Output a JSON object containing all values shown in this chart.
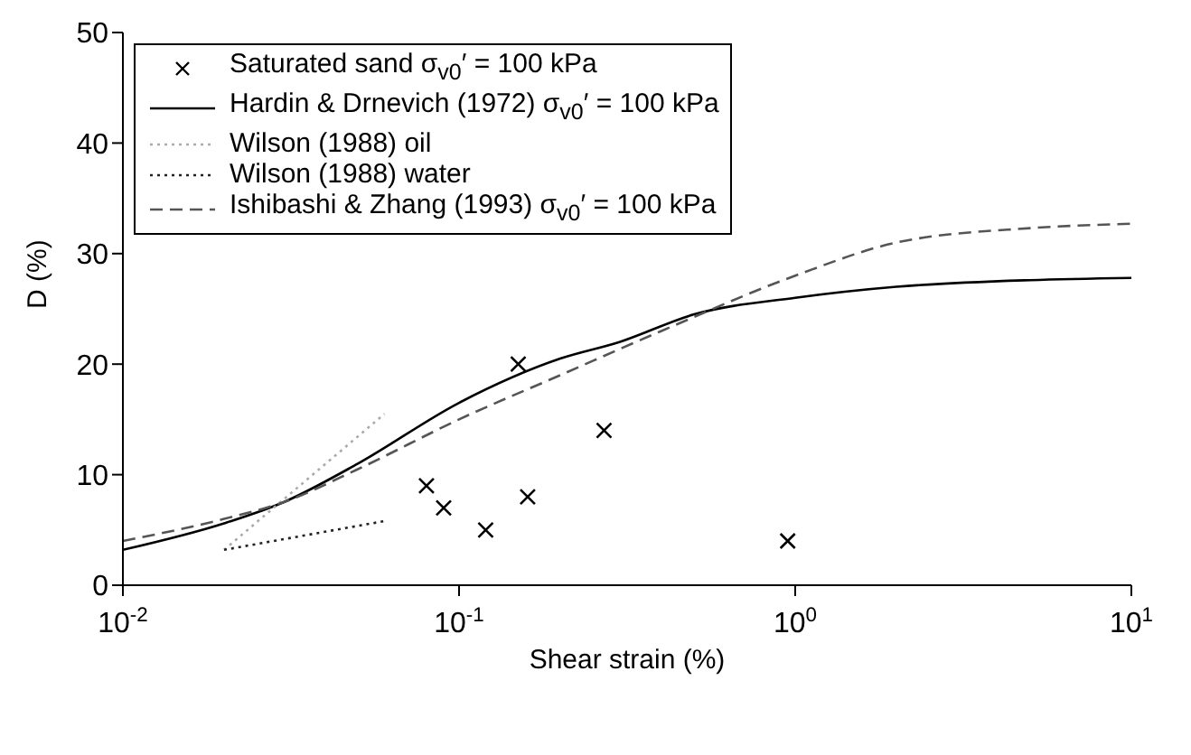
{
  "chart_data": {
    "type": "line",
    "xlabel": "Shear strain (%)",
    "ylabel": "D (%)",
    "log": "x",
    "grid": false,
    "legend": "top left",
    "xlim": [
      0.01,
      10
    ],
    "xticks": [
      {
        "value": 0.01,
        "label": "10$^{-2}$"
      },
      {
        "value": 0.1,
        "label": "10$^{-1}$"
      },
      {
        "value": 1,
        "label": "10$^{0}$"
      },
      {
        "value": 10,
        "label": "10$^{1}$"
      }
    ],
    "ylim": [
      0,
      50
    ],
    "yticks": [
      0,
      10,
      20,
      30,
      40,
      50
    ],
    "series": [
      {
        "name": "Saturated sand σ$_{v0}$′ = 100 kPa",
        "type": "scatter",
        "marker": "cross",
        "color": "#000000",
        "x": [
          0.08,
          0.09,
          0.12,
          0.15,
          0.16,
          0.27,
          0.95
        ],
        "values": [
          9,
          7,
          5,
          20,
          8,
          14,
          4
        ]
      },
      {
        "name": "Hardin & Drnevich (1972) σ$_{v0}$′ = 100 kPa",
        "line_style": "solid",
        "color": "#000000",
        "x": [
          0.01,
          0.02,
          0.03,
          0.05,
          0.1,
          0.2,
          0.3,
          0.5,
          1,
          2,
          5,
          10
        ],
        "values": [
          3.2,
          5.6,
          7.5,
          11,
          16.5,
          20.5,
          22,
          24.5,
          26,
          27,
          27.6,
          27.8
        ]
      },
      {
        "name": "Wilson (1988) oil",
        "line_style": "dotted",
        "color": "#aaaaaa",
        "x": [
          0.02,
          0.06
        ],
        "values": [
          3.2,
          15.5
        ]
      },
      {
        "name": "Wilson (1988) water",
        "line_style": "dotted",
        "color": "#222222",
        "x": [
          0.02,
          0.06
        ],
        "values": [
          3.2,
          5.8
        ]
      },
      {
        "name": "Ishibashi & Zhang (1993) σ$_{v0}$′ = 100 kPa",
        "line_style": "dashed",
        "color": "#555555",
        "x": [
          0.01,
          0.02,
          0.03,
          0.05,
          0.1,
          0.2,
          0.4,
          1,
          2,
          5,
          10
        ],
        "values": [
          4,
          6,
          7.5,
          10.5,
          15,
          19,
          23,
          28,
          31,
          32.3,
          32.7
        ]
      }
    ]
  }
}
